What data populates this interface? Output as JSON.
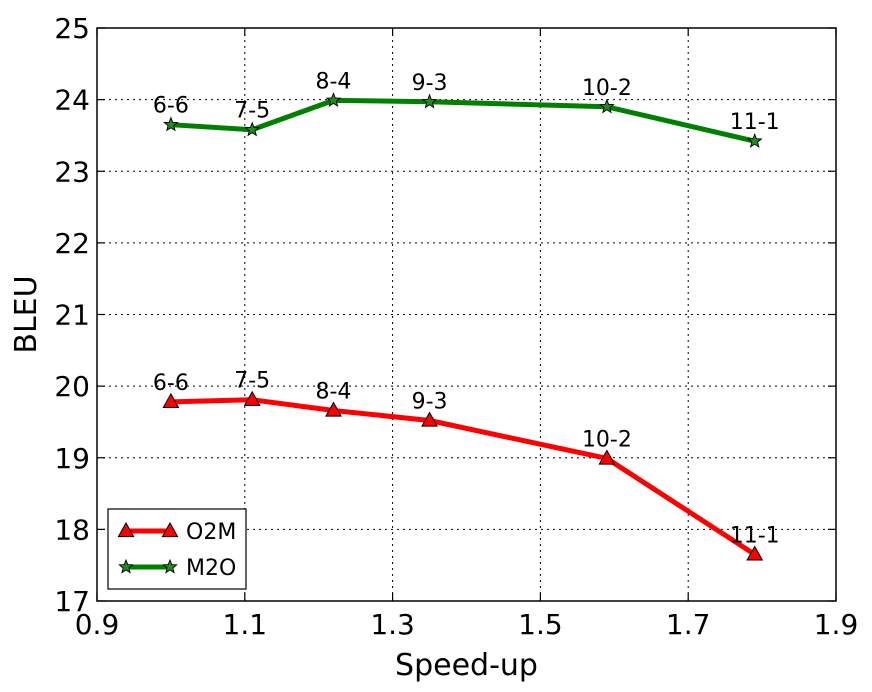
{
  "chart_data": {
    "type": "line",
    "xlabel": "Speed-up",
    "ylabel": "BLEU",
    "xlim": [
      0.9,
      1.9
    ],
    "ylim": [
      17,
      25
    ],
    "xticks": [
      "0.9",
      "1.1",
      "1.3",
      "1.5",
      "1.7",
      "1.9"
    ],
    "yticks": [
      "17",
      "18",
      "19",
      "20",
      "21",
      "22",
      "23",
      "24",
      "25"
    ],
    "grid": true,
    "legend_position": "bottom-left",
    "series": [
      {
        "name": "O2M",
        "color": "#ff0000",
        "marker": "triangle",
        "marker_color": "#ff0000",
        "points": [
          {
            "x": 1.0,
            "y": 19.78,
            "label": "6-6"
          },
          {
            "x": 1.11,
            "y": 19.81,
            "label": "7-5"
          },
          {
            "x": 1.22,
            "y": 19.66,
            "label": "8-4"
          },
          {
            "x": 1.35,
            "y": 19.52,
            "label": "9-3"
          },
          {
            "x": 1.59,
            "y": 18.99,
            "label": "10-2"
          },
          {
            "x": 1.79,
            "y": 17.65,
            "label": "11-1"
          }
        ]
      },
      {
        "name": "M2O",
        "color": "#008000",
        "marker": "star",
        "marker_color": "#228b22",
        "points": [
          {
            "x": 1.0,
            "y": 23.65,
            "label": "6-6"
          },
          {
            "x": 1.11,
            "y": 23.58,
            "label": "7-5"
          },
          {
            "x": 1.22,
            "y": 23.99,
            "label": "8-4"
          },
          {
            "x": 1.35,
            "y": 23.97,
            "label": "9-3"
          },
          {
            "x": 1.59,
            "y": 23.9,
            "label": "10-2"
          },
          {
            "x": 1.79,
            "y": 23.42,
            "label": "11-1"
          }
        ]
      }
    ]
  }
}
